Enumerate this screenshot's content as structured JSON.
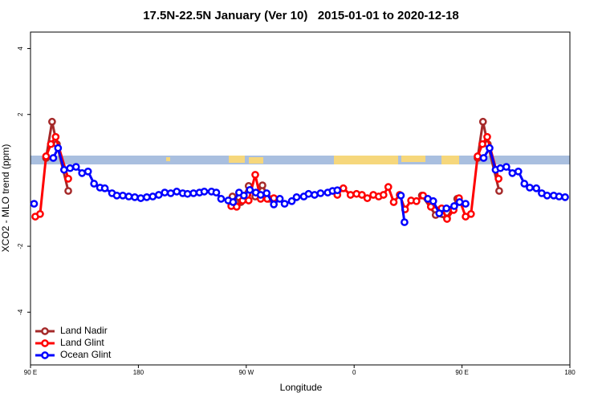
{
  "chart_data": {
    "type": "line",
    "title": "17.5N-22.5N January (Ver 10)   2015-01-01 to 2020-12-18",
    "xlabel": "Longitude",
    "ylabel": "XCO2 - MLO trend (ppm)",
    "xlim": [
      90,
      540
    ],
    "ylim": [
      -5.6,
      4.5
    ],
    "xticks": [
      {
        "value": 90,
        "label": "90 E"
      },
      180,
      {
        "value": 270,
        "label": "90 W"
      },
      {
        "value": 360,
        "label": "0"
      },
      {
        "value": 450,
        "label": "90 E"
      },
      {
        "value": 540,
        "label": "180"
      }
    ],
    "yticks": [
      -4,
      -2,
      2,
      4
    ],
    "legend": "bottomleft",
    "series": [
      {
        "name": "Land Nadir",
        "color": "#a52a2a",
        "x": [
          103,
          108,
          112,
          121.5,
          200,
          258.5,
          265.5,
          272,
          277.5,
          283.5,
          289,
          350,
          416.5,
          428,
          437.5,
          446,
          455,
          463,
          467.5,
          471.5,
          481
        ],
        "values": [
          0.68,
          1.78,
          1.1,
          -0.32,
          null,
          -0.49,
          -0.66,
          -0.17,
          -0.49,
          -0.15,
          -0.56,
          null,
          -0.46,
          -1.05,
          -1.15,
          -0.56,
          null,
          0.68,
          1.78,
          1.1,
          -0.32
        ]
      },
      {
        "name": "Land Glint",
        "color": "#ff0000",
        "x": [
          94,
          98,
          103,
          107,
          111,
          121.5,
          200,
          257.5,
          262,
          267,
          272,
          277.5,
          282,
          287.5,
          293,
          320,
          346,
          351,
          357,
          362,
          366.5,
          371,
          376,
          380.5,
          384.5,
          388.5,
          393,
          398,
          402.5,
          407.5,
          412,
          417.5,
          424,
          433,
          437.5,
          443,
          447.5,
          453,
          457.5,
          463,
          467,
          471,
          480.5
        ],
        "values": [
          -1.1,
          -1.02,
          0.73,
          1.1,
          1.32,
          0.05,
          null,
          -0.78,
          -0.8,
          -0.61,
          -0.61,
          0.17,
          -0.56,
          -0.56,
          -0.54,
          null,
          -0.44,
          -0.24,
          -0.44,
          -0.41,
          -0.44,
          -0.54,
          -0.44,
          -0.49,
          -0.44,
          -0.2,
          -0.66,
          -0.44,
          -0.88,
          -0.61,
          -0.63,
          -0.46,
          -0.8,
          -0.85,
          -1.17,
          -0.9,
          -0.54,
          -1.1,
          -1.02,
          0.73,
          1.1,
          1.32,
          0.05
        ]
      },
      {
        "name": "Ocean Glint",
        "color": "#0000ff",
        "x": [
          93,
          100,
          109,
          113,
          118,
          123,
          128,
          133,
          138,
          143,
          148,
          152,
          158,
          162,
          167,
          172,
          177,
          182,
          187,
          192,
          197,
          202,
          207,
          212,
          217,
          221,
          226,
          231,
          235,
          241,
          245,
          249,
          255,
          259,
          264,
          268,
          273,
          278,
          282,
          287,
          293,
          298,
          302,
          308,
          312,
          318,
          322,
          327,
          332,
          338,
          342,
          346,
          370,
          399,
          402,
          412,
          421.5,
          426,
          431,
          437,
          443.5,
          448,
          453,
          460,
          468,
          473,
          478,
          482,
          487,
          492,
          497,
          502,
          506.5,
          512,
          516.5,
          521,
          526.5,
          531,
          536
        ],
        "values": [
          -0.71,
          null,
          0.68,
          0.98,
          0.32,
          0.37,
          0.41,
          0.22,
          0.27,
          -0.1,
          -0.22,
          -0.24,
          -0.39,
          -0.46,
          -0.46,
          -0.49,
          -0.51,
          -0.54,
          -0.51,
          -0.49,
          -0.44,
          -0.37,
          -0.39,
          -0.34,
          -0.39,
          -0.41,
          -0.39,
          -0.37,
          -0.34,
          -0.34,
          -0.37,
          -0.56,
          -0.61,
          -0.66,
          -0.37,
          -0.46,
          -0.29,
          -0.37,
          -0.44,
          -0.39,
          -0.73,
          -0.56,
          -0.71,
          -0.63,
          -0.51,
          -0.49,
          -0.41,
          -0.44,
          -0.39,
          -0.37,
          -0.32,
          -0.3,
          null,
          -0.46,
          -1.27,
          null,
          -0.56,
          -0.63,
          -1.0,
          -0.85,
          -0.78,
          -0.66,
          -0.71,
          null,
          0.68,
          0.98,
          0.32,
          0.37,
          0.41,
          0.22,
          0.27,
          -0.1,
          -0.22,
          -0.24,
          -0.39,
          -0.46,
          -0.46,
          -0.49,
          -0.51
        ]
      }
    ]
  }
}
